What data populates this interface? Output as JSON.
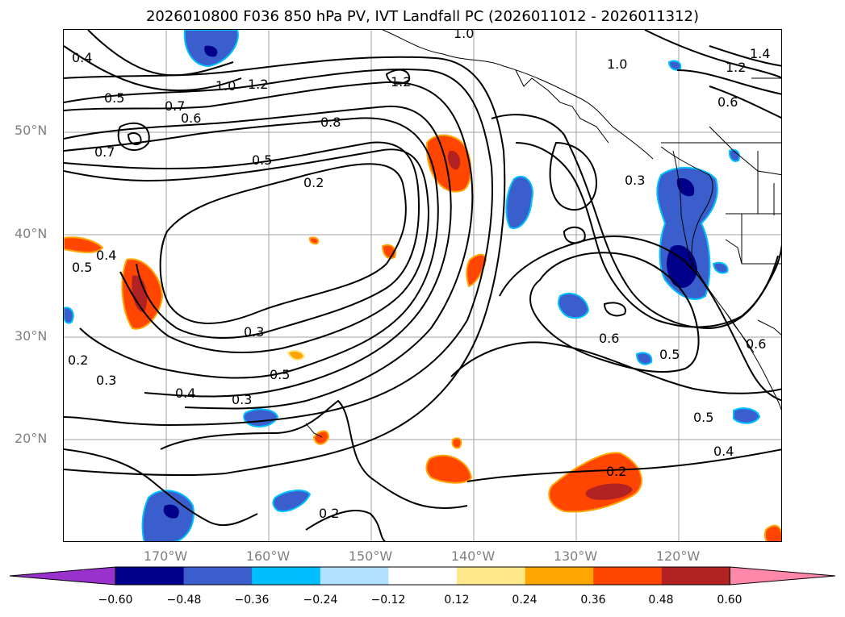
{
  "title": "2026010800 F036 850 hPa PV, IVT Landfall PC (2026011012 - 2026011312)",
  "map": {
    "lat_labels": [
      "50°N",
      "40°N",
      "30°N",
      "20°N"
    ],
    "lon_labels": [
      "170°W",
      "160°W",
      "150°W",
      "140°W",
      "130°W",
      "120°W"
    ],
    "contour_labels": [
      "1.0",
      "1.2",
      "1.2",
      "1.0",
      "1.2",
      "1.4",
      "0.4",
      "0.5",
      "0.7",
      "0.6",
      "1.0",
      "0.8",
      "0.5",
      "0.2",
      "0.6",
      "0.3",
      "0.7",
      "0.5",
      "0.4",
      "0.3",
      "0.2",
      "0.3",
      "0.6",
      "0.5",
      "0.5",
      "0.4",
      "0.3",
      "0.4",
      "0.2",
      "0.2",
      "0.5",
      "0.6"
    ],
    "fill_colors": {
      "pos_light": "#ffe88a",
      "pos_mid": "#ffa500",
      "pos_strong": "#ff4500",
      "pos_max": "#b22222",
      "neg_light": "#aee0f8",
      "neg_mid": "#3a5fcd",
      "neg_strong": "#00008b"
    }
  },
  "colorbar": {
    "ticks": [
      "−0.60",
      "−0.48",
      "−0.36",
      "−0.24",
      "−0.12",
      "0.12",
      "0.24",
      "0.36",
      "0.48",
      "0.60"
    ],
    "colors": [
      "#9932cc",
      "#00008b",
      "#3a5fcd",
      "#00bfff",
      "#b0e2ff",
      "#ffffff",
      "#ffe88a",
      "#ffa500",
      "#ff4500",
      "#b22222",
      "#ff88aa"
    ]
  }
}
